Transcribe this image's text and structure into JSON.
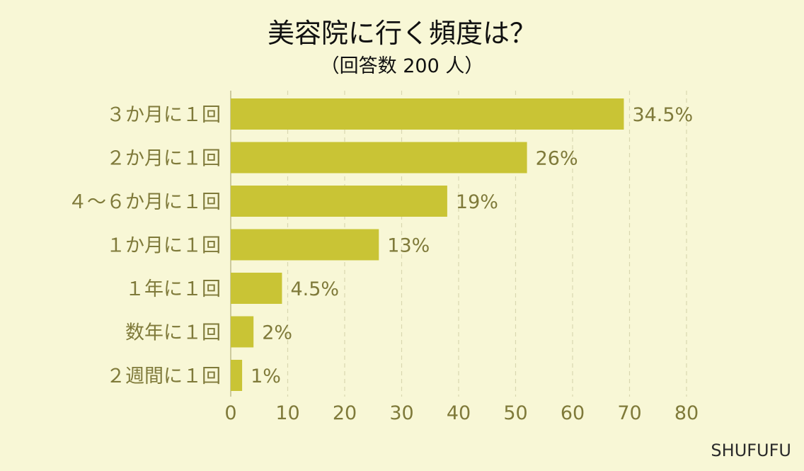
{
  "chart_data": {
    "type": "bar",
    "orientation": "horizontal",
    "title": "美容院に行く頻度は？",
    "subtitle": "（回答数 200 人）",
    "categories": [
      "３か月に１回",
      "２か月に１回",
      "４〜６か月に１回",
      "１か月に１回",
      "１年に１回",
      "数年に１回",
      "２週間に１回"
    ],
    "values": [
      34.5,
      26,
      19,
      13,
      4.5,
      2,
      1
    ],
    "value_labels": [
      "34.5%",
      "26%",
      "19%",
      "13%",
      "4.5%",
      "2%",
      "1%"
    ],
    "xlim": [
      0,
      80
    ],
    "xticks": [
      0,
      10,
      20,
      30,
      40,
      50,
      60,
      70,
      80
    ],
    "x_scale_factor": 2,
    "grid": true,
    "bar_color": "#c9c435",
    "text_color": "#7f7a3a",
    "background_color": "#f8f7d6"
  },
  "source": "SHUFUFU"
}
